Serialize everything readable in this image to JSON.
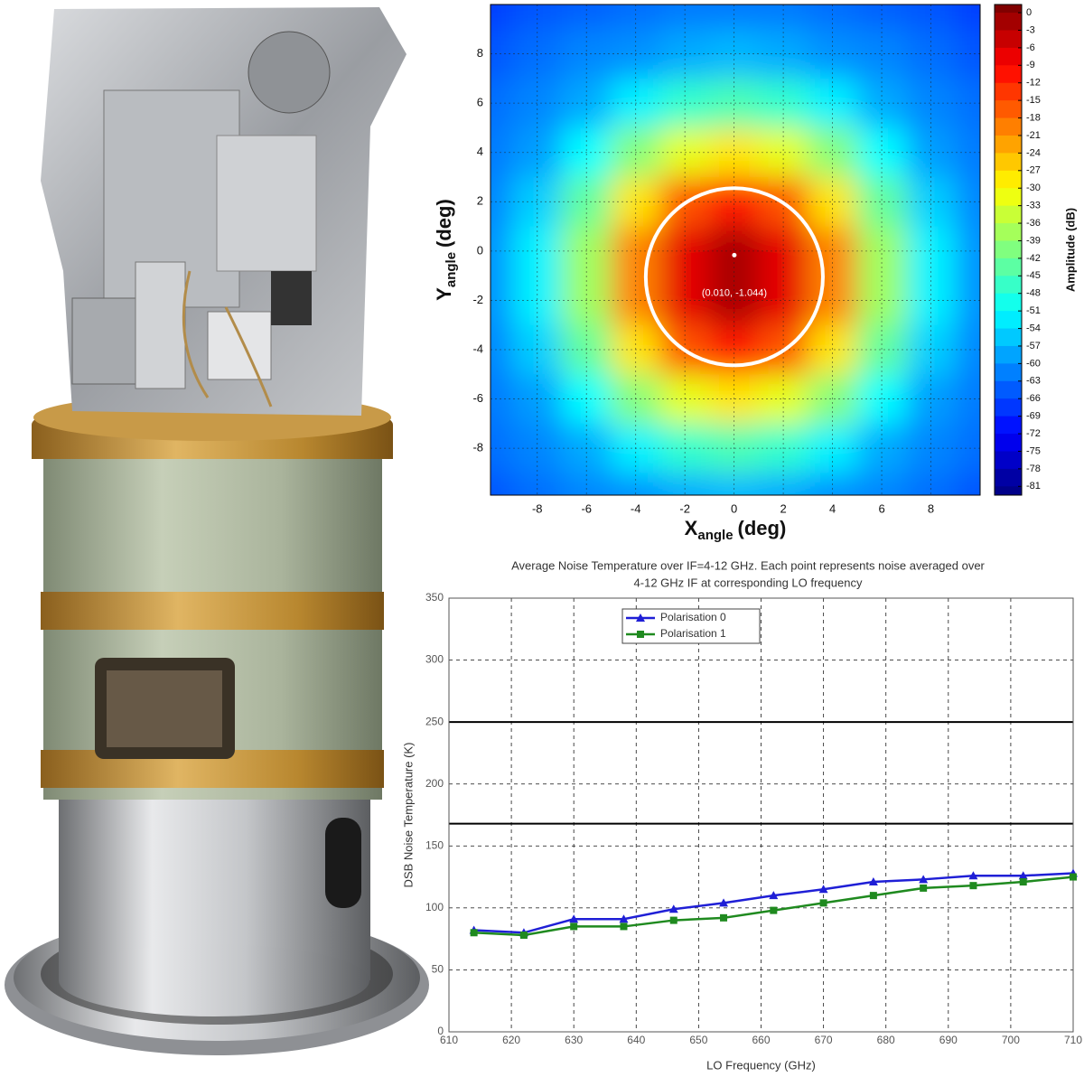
{
  "chart_data": [
    {
      "type": "contour",
      "xlabel": "X",
      "xlabel_sub": "angle",
      "xlabel_unit": "(deg)",
      "ylabel": "Y",
      "ylabel_sub": "angle",
      "ylabel_unit": "(deg)",
      "x": [
        -10,
        -8,
        -6,
        -4,
        -2,
        0,
        2,
        4,
        6,
        8,
        10
      ],
      "y": [
        10,
        8,
        6,
        4,
        2,
        0,
        -2,
        -4,
        -6,
        -8,
        -10
      ],
      "z": [
        [
          -67,
          -65,
          -64,
          -63,
          -62,
          -62,
          -62,
          -63,
          -64,
          -65,
          -67
        ],
        [
          -65,
          -63,
          -61,
          -60,
          -58,
          -57,
          -58,
          -60,
          -61,
          -63,
          -65
        ],
        [
          -63,
          -61,
          -58,
          -52,
          -47,
          -45,
          -47,
          -52,
          -58,
          -61,
          -63
        ],
        [
          -62,
          -59,
          -51,
          -40,
          -32,
          -28,
          -32,
          -40,
          -51,
          -59,
          -62
        ],
        [
          -61,
          -55,
          -43,
          -28,
          -16,
          -11,
          -16,
          -28,
          -43,
          -55,
          -61
        ],
        [
          -60,
          -52,
          -38,
          -20,
          -7,
          -2,
          -7,
          -20,
          -38,
          -52,
          -60
        ],
        [
          -60,
          -52,
          -38,
          -20,
          -7,
          -2,
          -7,
          -20,
          -38,
          -52,
          -60
        ],
        [
          -61,
          -55,
          -43,
          -28,
          -16,
          -11,
          -16,
          -28,
          -43,
          -55,
          -61
        ],
        [
          -62,
          -59,
          -51,
          -40,
          -32,
          -28,
          -32,
          -40,
          -51,
          -59,
          -62
        ],
        [
          -63,
          -61,
          -58,
          -52,
          -47,
          -45,
          -47,
          -52,
          -58,
          -61,
          -63
        ],
        [
          -65,
          -63,
          -61,
          -60,
          -58,
          -57,
          -58,
          -60,
          -61,
          -63,
          -65
        ]
      ],
      "xlim": [
        -9.9,
        10
      ],
      "ylim": [
        -9.9,
        10
      ],
      "xticks": [
        -8,
        -6,
        -4,
        -2,
        0,
        2,
        4,
        6,
        8
      ],
      "yticks": [
        -8,
        -6,
        -4,
        -2,
        0,
        2,
        4,
        6,
        8
      ],
      "grid": true,
      "colormap": "jet",
      "colorbar_label": "Amplitude (dB)",
      "clim": [
        -82.5,
        1.4
      ],
      "cticks": [
        0,
        -3,
        -6,
        -9,
        -12,
        -15,
        -18,
        -21,
        -24,
        -27,
        -30,
        -33,
        -36,
        -39,
        -42,
        -45,
        -48,
        -51,
        -54,
        -57,
        -60,
        -63,
        -66,
        -69,
        -72,
        -75,
        -78,
        -81
      ],
      "peak": [
        0.01,
        -1.044
      ],
      "annotation": "(0.010, -1.044)",
      "circle_radius": 3.6,
      "circle_color": "#ffffff"
    },
    {
      "type": "line",
      "title": [
        "Average Noise Temperature over IF=4-12 GHz. Each point represents noise averaged over",
        "4-12 GHz IF at corresponding LO frequency"
      ],
      "xlabel": "LO Frequency (GHz)",
      "ylabel": "DSB Noise Temperature (K)",
      "x": [
        614,
        622,
        630,
        638,
        646,
        654,
        662,
        670,
        678,
        686,
        694,
        702,
        710
      ],
      "series": [
        {
          "name": "Polarisation 0",
          "color": "#1f1fd6",
          "marker": "triangle",
          "values": [
            82,
            80,
            91,
            91,
            99,
            104,
            110,
            115,
            121,
            123,
            126,
            126,
            128
          ]
        },
        {
          "name": "Polarisation 1",
          "color": "#1f8a1f",
          "marker": "square",
          "values": [
            80,
            78,
            85,
            85,
            90,
            92,
            98,
            104,
            110,
            116,
            118,
            121,
            125
          ]
        }
      ],
      "xlim": [
        610,
        710
      ],
      "ylim": [
        0,
        350
      ],
      "xticks": [
        610,
        620,
        630,
        640,
        650,
        660,
        670,
        680,
        690,
        700,
        710
      ],
      "yticks": [
        0,
        50,
        100,
        150,
        200,
        250,
        300,
        350
      ],
      "hlines": [
        250,
        168
      ],
      "grid": true,
      "legend": "upper left"
    }
  ]
}
